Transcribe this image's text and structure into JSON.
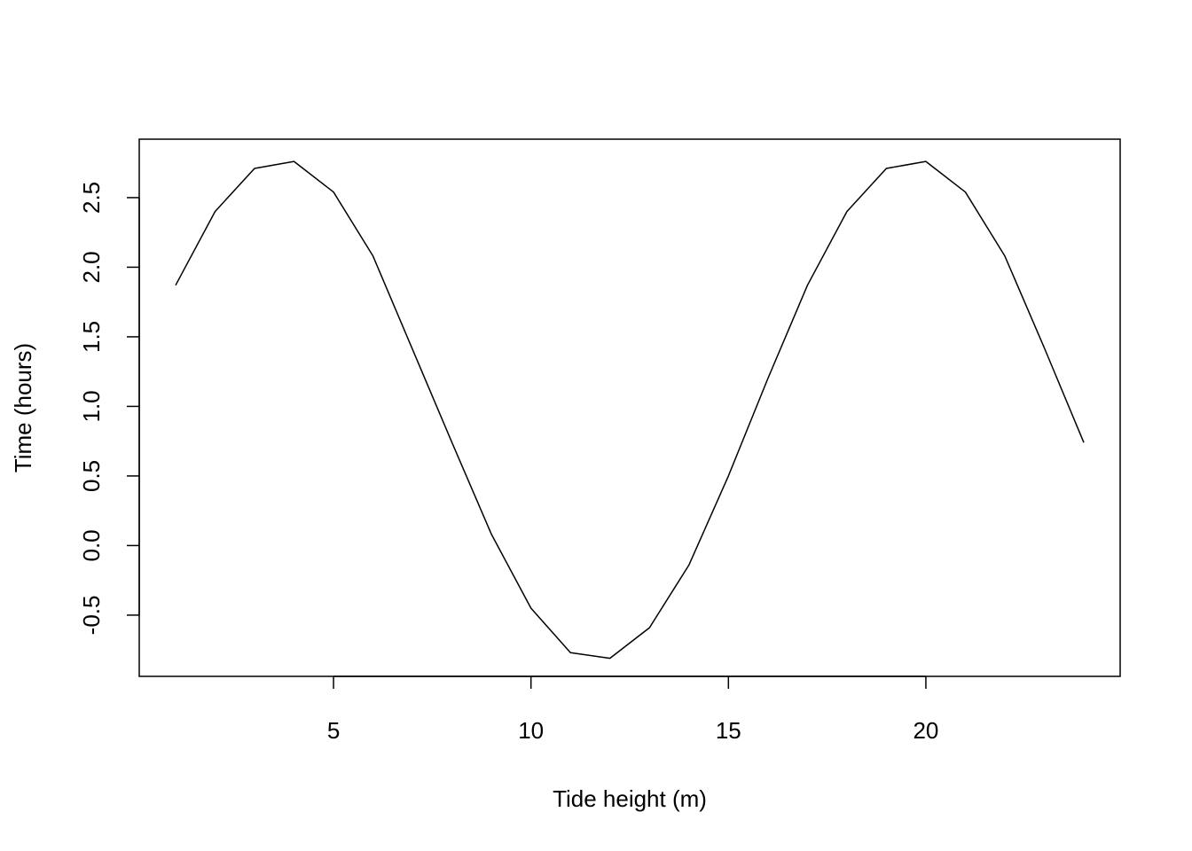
{
  "chart_data": {
    "type": "line",
    "title": "",
    "xlabel": "Tide height (m)",
    "ylabel": "Time (hours)",
    "xlim": [
      0.08,
      24.92
    ],
    "ylim": [
      -0.94,
      2.92
    ],
    "xticks": [
      5,
      10,
      15,
      20
    ],
    "yticks": [
      -0.5,
      0.0,
      0.5,
      1.0,
      1.5,
      2.0,
      2.5
    ],
    "xtick_labels": [
      "5",
      "10",
      "15",
      "20"
    ],
    "ytick_labels": [
      "-0.5",
      "0.0",
      "0.5",
      "1.0",
      "1.5",
      "2.0",
      "2.5"
    ],
    "grid": false,
    "line_color": "#000000",
    "series": [
      {
        "x": [
          1,
          2,
          3,
          4,
          5,
          6,
          7,
          8,
          9,
          10,
          11,
          12,
          13,
          14,
          15,
          16,
          17,
          18,
          19,
          20,
          21,
          22,
          23,
          24
        ],
        "y": [
          1.87,
          2.4,
          2.71,
          2.76,
          2.54,
          2.08,
          1.41,
          0.74,
          0.08,
          -0.45,
          -0.77,
          -0.81,
          -0.59,
          -0.14,
          0.5,
          1.2,
          1.87,
          2.4,
          2.71,
          2.76,
          2.54,
          2.08,
          1.42,
          0.74
        ]
      }
    ]
  }
}
